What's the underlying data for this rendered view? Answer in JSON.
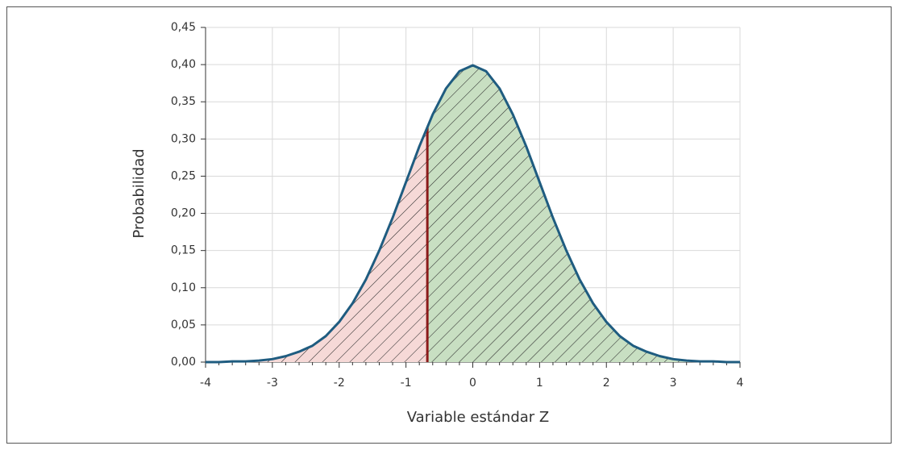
{
  "chart_data": {
    "type": "area",
    "xlabel": "Variable estándar Z",
    "ylabel": "Probabilidad",
    "x": [
      -4,
      -3.8,
      -3.6,
      -3.4,
      -3.2,
      -3,
      -2.8,
      -2.6,
      -2.4,
      -2.2,
      -2,
      -1.8,
      -1.6,
      -1.4,
      -1.2,
      -1,
      -0.8,
      -0.6,
      -0.4,
      -0.2,
      0,
      0.2,
      0.4,
      0.6,
      0.8,
      1,
      1.2,
      1.4,
      1.6,
      1.8,
      2,
      2.2,
      2.4,
      2.6,
      2.8,
      3,
      3.2,
      3.4,
      3.6,
      3.8,
      4
    ],
    "series": [
      {
        "color": "#1f5c80",
        "values": [
          0.0,
          0.0,
          0.001,
          0.001,
          0.002,
          0.004,
          0.008,
          0.014,
          0.022,
          0.035,
          0.054,
          0.079,
          0.111,
          0.15,
          0.194,
          0.242,
          0.29,
          0.333,
          0.368,
          0.391,
          0.399,
          0.391,
          0.368,
          0.333,
          0.29,
          0.242,
          0.194,
          0.15,
          0.111,
          0.079,
          0.054,
          0.035,
          0.022,
          0.014,
          0.008,
          0.004,
          0.002,
          0.001,
          0.001,
          0.0,
          0.0
        ]
      }
    ],
    "cutoff": {
      "x": -0.68,
      "y": 0.316,
      "color": "#8b1a1a"
    },
    "left_fill": "#f6d9d7",
    "right_fill": "#c8dfc2",
    "hatch_color": "#2a2a2a",
    "xlim": [
      -4,
      4
    ],
    "ylim": [
      0,
      0.45
    ],
    "xticks": [
      -4,
      -3,
      -2,
      -1,
      0,
      1,
      2,
      3,
      4
    ],
    "yticks": [
      {
        "value": 0,
        "label": "0,00"
      },
      {
        "value": 0.05,
        "label": "0,05"
      },
      {
        "value": 0.1,
        "label": "0,10"
      },
      {
        "value": 0.15,
        "label": "0,15"
      },
      {
        "value": 0.2,
        "label": "0,20"
      },
      {
        "value": 0.25,
        "label": "0,25"
      },
      {
        "value": 0.3,
        "label": "0,30"
      },
      {
        "value": 0.35,
        "label": "0,35"
      },
      {
        "value": 0.4,
        "label": "0,40"
      },
      {
        "value": 0.45,
        "label": "0,45"
      }
    ],
    "grid": true
  }
}
